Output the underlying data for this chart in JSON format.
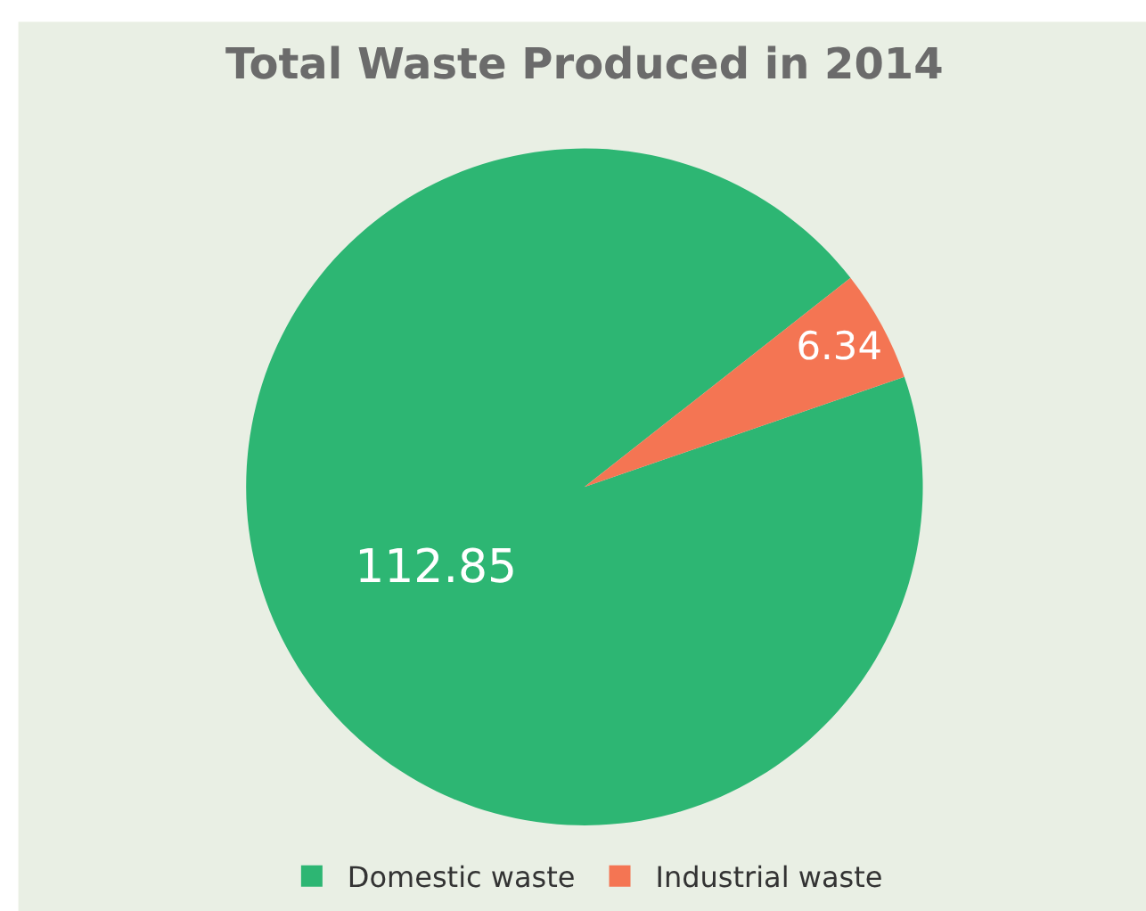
{
  "chart_data": {
    "type": "pie",
    "title": "Total Waste Produced in 2014",
    "categories": [
      "Domestic waste",
      "Industrial waste"
    ],
    "values": [
      112.85,
      6.34
    ],
    "colors": [
      "#2db673",
      "#f47553"
    ],
    "data_labels": true,
    "legend": "bottom"
  }
}
